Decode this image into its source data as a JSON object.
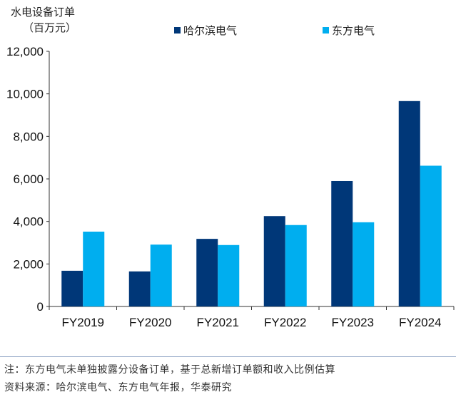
{
  "chart_data": {
    "type": "bar",
    "ylabel_line1": "水电设备订单",
    "ylabel_line2": "（百万元）",
    "categories": [
      "FY2019",
      "FY2020",
      "FY2021",
      "FY2022",
      "FY2023",
      "FY2024"
    ],
    "series": [
      {
        "name": "哈尔滨电气",
        "color": "#003778",
        "values": [
          1680,
          1650,
          3180,
          4250,
          5900,
          9660
        ]
      },
      {
        "name": "东方电气",
        "color": "#00aeef",
        "values": [
          3520,
          2910,
          2890,
          3830,
          3960,
          6620
        ]
      }
    ],
    "ylim": [
      0,
      12000
    ],
    "yticks": [
      0,
      2000,
      4000,
      6000,
      8000,
      10000,
      12000
    ],
    "ytick_labels": [
      "0",
      "2,000",
      "4,000",
      "6,000",
      "8,000",
      "10,000",
      "12,000"
    ],
    "grid": false,
    "legend_position": "top"
  },
  "notes": {
    "note": "注：东方电气未单独披露分设备订单，基于总新增订单额和收入比例估算",
    "source": "资料来源：哈尔滨电气、东方电气年报，华泰研究"
  }
}
